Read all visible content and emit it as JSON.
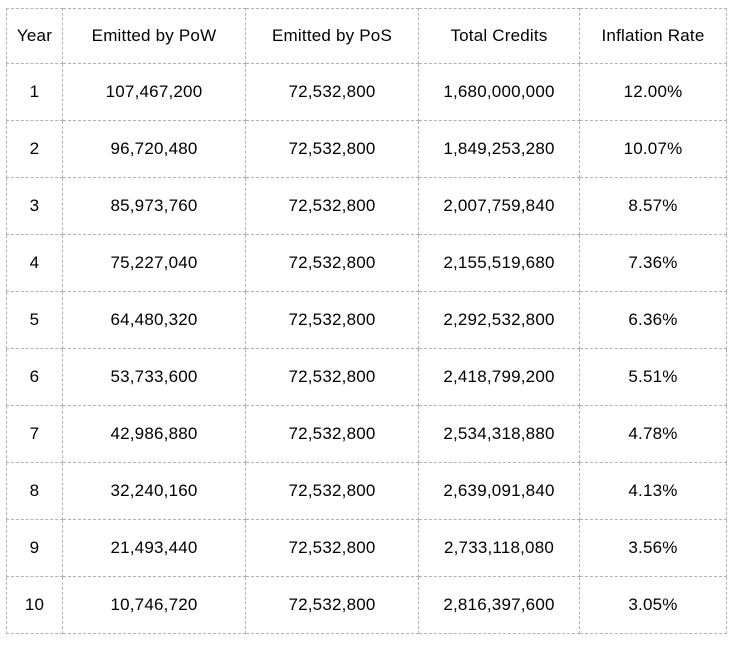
{
  "chart_data": {
    "type": "table",
    "columns": [
      "Year",
      "Emitted by PoW",
      "Emitted by PoS",
      "Total Credits",
      "Inflation Rate"
    ],
    "rows": [
      [
        "1",
        "107,467,200",
        "72,532,800",
        "1,680,000,000",
        "12.00%"
      ],
      [
        "2",
        "96,720,480",
        "72,532,800",
        "1,849,253,280",
        "10.07%"
      ],
      [
        "3",
        "85,973,760",
        "72,532,800",
        "2,007,759,840",
        "8.57%"
      ],
      [
        "4",
        "75,227,040",
        "72,532,800",
        "2,155,519,680",
        "7.36%"
      ],
      [
        "5",
        "64,480,320",
        "72,532,800",
        "2,292,532,800",
        "6.36%"
      ],
      [
        "6",
        "53,733,600",
        "72,532,800",
        "2,418,799,200",
        "5.51%"
      ],
      [
        "7",
        "42,986,880",
        "72,532,800",
        "2,534,318,880",
        "4.78%"
      ],
      [
        "8",
        "32,240,160",
        "72,532,800",
        "2,639,091,840",
        "4.13%"
      ],
      [
        "9",
        "21,493,440",
        "72,532,800",
        "2,733,118,080",
        "3.56%"
      ],
      [
        "10",
        "10,746,720",
        "72,532,800",
        "2,816,397,600",
        "3.05%"
      ]
    ],
    "title": "",
    "layout_hints": {
      "grid": "dashed",
      "alignment": "center"
    }
  },
  "colors": {
    "border": "#b2b2b2",
    "text": "#000000",
    "background": "#ffffff"
  }
}
